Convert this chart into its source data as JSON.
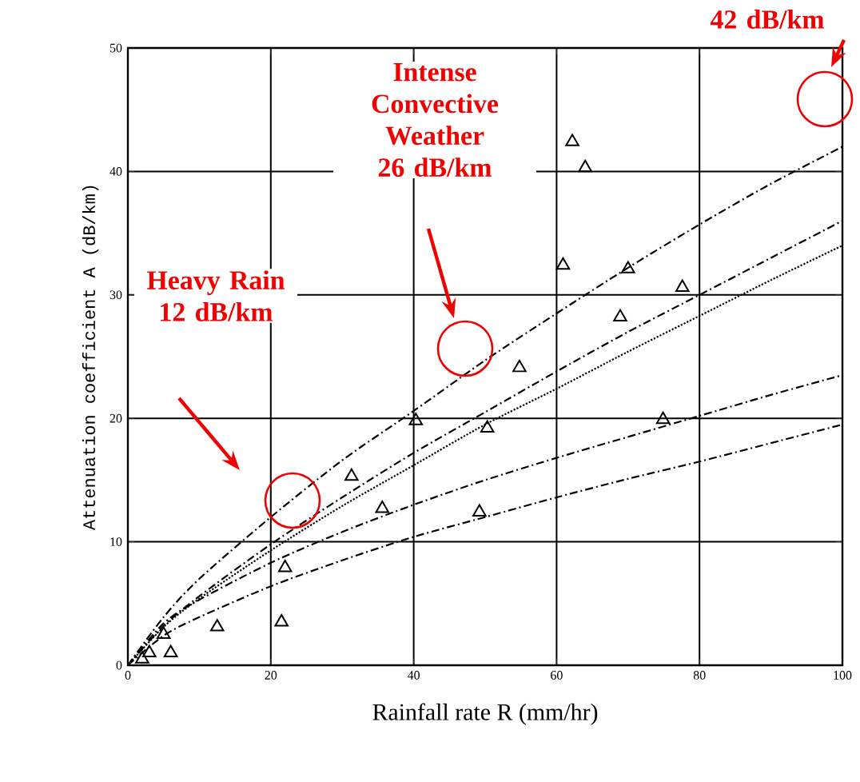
{
  "chart_data": {
    "type": "line",
    "xlabel": "Rainfall rate R (mm/hr)",
    "ylabel": "Attenuation coefficient A (dB/km)",
    "xlim": [
      0,
      100
    ],
    "ylim": [
      0,
      50
    ],
    "xticks": [
      0,
      20,
      40,
      60,
      80,
      100
    ],
    "yticks": [
      0,
      10,
      20,
      30,
      40,
      50
    ],
    "grid": true,
    "series": [
      {
        "type": "line",
        "color": "#000000",
        "line_style": "dashed",
        "marker": "none",
        "x": [
          0,
          5,
          10,
          20,
          30,
          40,
          50,
          60,
          70,
          80,
          90,
          100
        ],
        "values": [
          0,
          3.9,
          7.0,
          12,
          16.6,
          20.6,
          24.7,
          28.5,
          32.2,
          35.7,
          39.0,
          42
        ]
      },
      {
        "type": "line",
        "color": "#000000",
        "line_style": "dashed",
        "marker": "none",
        "x": [
          0,
          5,
          10,
          20,
          30,
          40,
          50,
          60,
          70,
          80,
          90,
          100
        ],
        "values": [
          0,
          3.2,
          5.6,
          9.8,
          13.6,
          17.2,
          20.5,
          23.8,
          27.0,
          30.0,
          33.0,
          36
        ]
      },
      {
        "type": "line",
        "color": "#000000",
        "line_style": "dotted",
        "marker": "none",
        "x": [
          0,
          5,
          10,
          20,
          30,
          40,
          50,
          60,
          70,
          80,
          90,
          100
        ],
        "values": [
          0,
          3.1,
          5.4,
          9.3,
          12.9,
          16.2,
          19.5,
          22.4,
          25.4,
          28.3,
          31.2,
          34
        ]
      },
      {
        "type": "line",
        "color": "#000000",
        "line_style": "dashed",
        "marker": "none",
        "x": [
          0,
          5,
          10,
          20,
          30,
          40,
          50,
          60,
          70,
          80,
          90,
          100
        ],
        "values": [
          0,
          3.4,
          5.3,
          8.3,
          10.8,
          13.0,
          15,
          16.8,
          18.5,
          20.2,
          21.9,
          23.5
        ]
      },
      {
        "type": "line",
        "color": "#000000",
        "line_style": "dashed",
        "marker": "none",
        "x": [
          0,
          5,
          10,
          20,
          30,
          40,
          50,
          60,
          70,
          80,
          90,
          100
        ],
        "values": [
          0,
          2.4,
          3.9,
          6.4,
          8.5,
          10.4,
          12,
          13.6,
          15.1,
          16.5,
          18.0,
          19.5
        ]
      },
      {
        "type": "scatter",
        "color": "#000000",
        "marker": "triangle",
        "x": [
          2,
          3,
          5,
          6,
          12.5,
          21.5,
          22,
          31.3,
          35.6,
          40.3,
          49.2,
          50.3,
          54.8,
          60.9,
          62.2,
          64,
          68.9,
          70,
          74.9,
          77.6
        ],
        "values": [
          0.5,
          1,
          2.5,
          1,
          3.1,
          3.5,
          7.9,
          15.3,
          12.7,
          19.8,
          12.4,
          19.2,
          24.1,
          32.4,
          42.4,
          40.3,
          28.2,
          32.1,
          19.9,
          30.6
        ]
      }
    ],
    "annotations": [
      "Heavy Rain 12 dB/km",
      "Intense Convective Weather 26 dB/km",
      "42 dB/km"
    ]
  }
}
